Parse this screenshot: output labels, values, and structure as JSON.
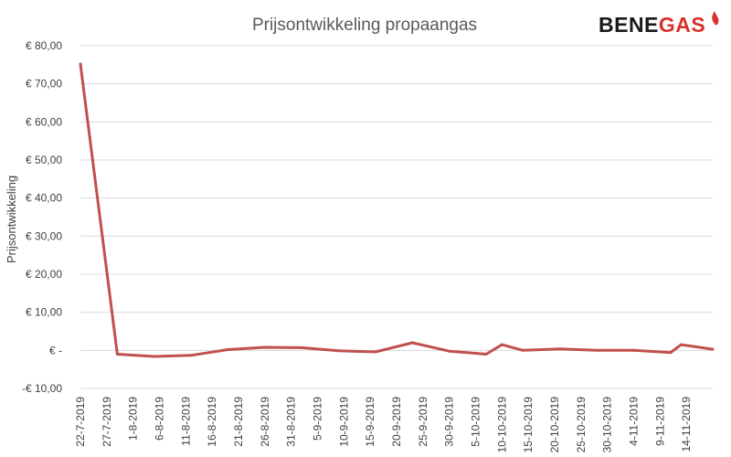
{
  "logo": {
    "text_dark": "BENE",
    "text_accent": "GAS",
    "dark_color": "#1a1a1a",
    "accent_color": "#d9312b",
    "icon": "flame-icon"
  },
  "colors": {
    "line": "#c0504d"
  },
  "chart_data": {
    "type": "line",
    "title": "Prijsontwikkeling propaangas",
    "xlabel": "",
    "ylabel": "Prijsontwikkeling",
    "ylim": [
      -10,
      80
    ],
    "yticks": [
      -10,
      0,
      10,
      20,
      30,
      40,
      50,
      60,
      70,
      80
    ],
    "ytick_labels": [
      "-€ 10,00",
      "€ -",
      "€ 10,00",
      "€ 20,00",
      "€ 30,00",
      "€ 40,00",
      "€ 50,00",
      "€ 60,00",
      "€ 70,00",
      "€ 80,00"
    ],
    "grid": true,
    "xticks": [
      "22-7-2019",
      "27-7-2019",
      "1-8-2019",
      "6-8-2019",
      "11-8-2019",
      "16-8-2019",
      "21-8-2019",
      "26-8-2019",
      "31-8-2019",
      "5-9-2019",
      "10-9-2019",
      "15-9-2019",
      "20-9-2019",
      "25-9-2019",
      "30-9-2019",
      "5-10-2019",
      "10-10-2019",
      "15-10-2019",
      "20-10-2019",
      "25-10-2019",
      "30-10-2019",
      "4-11-2019",
      "9-11-2019",
      "14-11-2019"
    ],
    "series": [
      {
        "x": [
          "22-7-2019",
          "29-7-2019",
          "5-8-2019",
          "12-8-2019",
          "19-8-2019",
          "26-8-2019",
          "2-9-2019",
          "9-9-2019",
          "16-9-2019",
          "23-9-2019",
          "30-9-2019",
          "7-10-2019",
          "10-10-2019",
          "14-10-2019",
          "21-10-2019",
          "28-10-2019",
          "4-11-2019",
          "11-11-2019",
          "13-11-2019",
          "19-11-2019"
        ],
        "values": [
          75.2,
          -1.0,
          -1.6,
          -1.3,
          0.2,
          0.8,
          0.7,
          -0.1,
          -0.4,
          2.0,
          -0.2,
          -1.0,
          1.5,
          0.0,
          0.4,
          0.0,
          0.0,
          -0.6,
          1.5,
          0.3
        ]
      }
    ]
  }
}
